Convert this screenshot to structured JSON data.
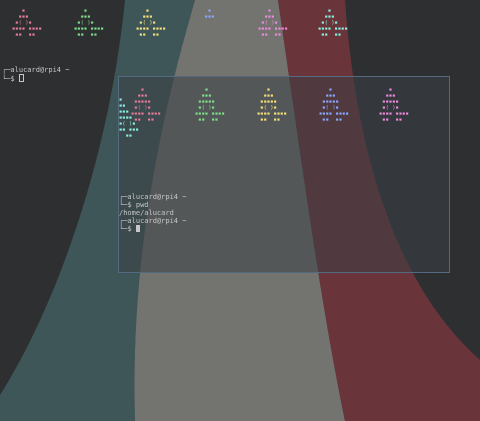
{
  "colors": {
    "background": "#2e2f31",
    "stripe_teal": "#3e5657",
    "stripe_light": "#737370",
    "stripe_red": "#6a343b",
    "term_text": "#c7c7c7",
    "window_border": "#546a80",
    "invader_red": "#e87c9a",
    "invader_green": "#7fe08a",
    "invader_yellow": "#f4e07a",
    "invader_blue": "#8aa8ff",
    "invader_magenta": "#f08ae0",
    "invader_cyan": "#8af0e0"
  },
  "background_terminal": {
    "prompt_line1": "┌─alucard@rpi4 ~",
    "prompt_line2": "└─$ ",
    "invaders": [
      {
        "color": "#e87c9a",
        "rows": [
          "   ▪   ",
          "  ▪▪▪  ",
          " ▪( )▪ ",
          "▪▪▪▪ ▪▪▪▪",
          " ▪▪  ▪▪ "
        ]
      },
      {
        "color": "#7fe08a",
        "rows": [
          "   ▪   ",
          "  ▪▪▪  ",
          " ▪( )▪ ",
          "▪▪▪▪ ▪▪▪▪",
          " ▪▪  ▪▪ "
        ]
      },
      {
        "color": "#f4e07a",
        "rows": [
          "   ▪   ",
          "  ▪▪▪  ",
          " ▪( )▪ ",
          "▪▪▪▪ ▪▪▪▪",
          " ▪▪  ▪▪ "
        ]
      },
      {
        "color": "#8aa8ff",
        "rows": [
          "   ▪   ",
          "  ▪▪▪  ",
          "       ",
          "         ",
          "        "
        ]
      },
      {
        "color": "#f08ae0",
        "rows": [
          "   ▪   ",
          "  ▪▪▪  ",
          " ▪( )▪ ",
          "▪▪▪▪ ▪▪▪▪",
          " ▪▪  ▪▪ "
        ]
      },
      {
        "color": "#8af0e0",
        "rows": [
          "   ▪   ",
          "  ▪▪▪  ",
          " ▪( )▪ ",
          "▪▪▪▪ ▪▪▪▪",
          " ▪▪  ▪▪ "
        ]
      }
    ]
  },
  "foreground_terminal": {
    "invaders": [
      {
        "color": "#e87c9a",
        "rows": [
          "   ▪   ",
          "  ▪▪▪  ",
          " ▪▪▪▪▪ ",
          " ▪( )▪ ",
          "▪▪▪▪ ▪▪▪▪",
          " ▪▪  ▪▪ "
        ]
      },
      {
        "color": "#7fe08a",
        "rows": [
          "   ▪   ",
          "  ▪▪▪  ",
          " ▪▪▪▪▪ ",
          " ▪( )▪ ",
          "▪▪▪▪ ▪▪▪▪",
          " ▪▪  ▪▪ "
        ]
      },
      {
        "color": "#f4e07a",
        "rows": [
          "   ▪   ",
          "  ▪▪▪  ",
          " ▪▪▪▪▪ ",
          " ▪( )▪ ",
          "▪▪▪▪ ▪▪▪▪",
          " ▪▪  ▪▪ "
        ]
      },
      {
        "color": "#8aa8ff",
        "rows": [
          "   ▪   ",
          "  ▪▪▪  ",
          " ▪▪▪▪▪ ",
          " ▪( )▪ ",
          "▪▪▪▪ ▪▪▪▪",
          " ▪▪  ▪▪ "
        ]
      },
      {
        "color": "#f08ae0",
        "rows": [
          "   ▪   ",
          "  ▪▪▪  ",
          " ▪▪▪▪▪ ",
          " ▪( )▪ ",
          "▪▪▪▪ ▪▪▪▪",
          " ▪▪  ▪▪ "
        ]
      }
    ],
    "edge_cyan": {
      "color": "#8af0e0",
      "rows": [
        "▪",
        "▪▪",
        "▪▪▪",
        "▪▪▪▪",
        "▪( )▪",
        "▪▪ ▪▪▪",
        "  ▪▪"
      ]
    },
    "lines": [
      "┌─alucard@rpi4 ~",
      "└─$ pwd",
      "/home/alucard",
      "┌─alucard@rpi4 ~",
      "└─$ "
    ]
  }
}
